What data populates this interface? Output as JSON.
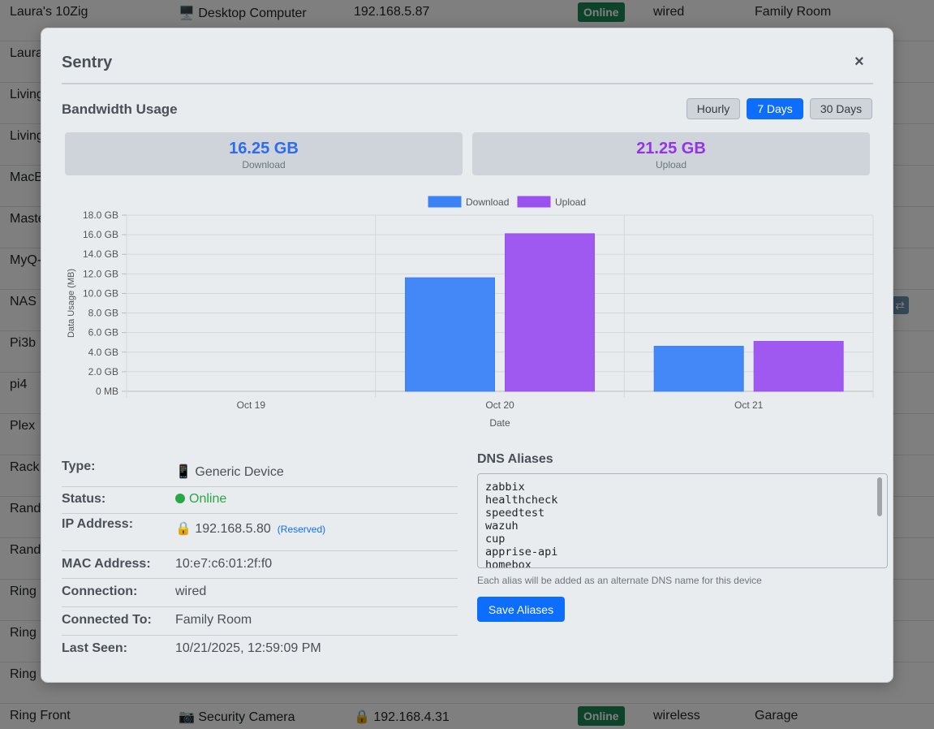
{
  "background_rows": [
    {
      "name": "Laura's 10Zig",
      "type": "🖥️ Desktop Computer",
      "ip": "192.168.5.87",
      "status": "Online",
      "connection": "wired",
      "location": "Family Room"
    },
    {
      "name": "Laura",
      "type": "",
      "ip": "",
      "status": "",
      "connection": "",
      "location": ""
    },
    {
      "name": "Living",
      "type": "",
      "ip": "",
      "status": "",
      "connection": "",
      "location": ""
    },
    {
      "name": "Living",
      "type": "",
      "ip": "",
      "status": "",
      "connection": "",
      "location": ""
    },
    {
      "name": "MacB",
      "type": "",
      "ip": "",
      "status": "",
      "connection": "",
      "location": ""
    },
    {
      "name": "Maste",
      "type": "",
      "ip": "",
      "status": "",
      "connection": "",
      "location": ""
    },
    {
      "name": "MyQ-",
      "type": "",
      "ip": "",
      "status": "",
      "connection": "",
      "location": ""
    },
    {
      "name": "NAS",
      "type": "",
      "ip": "",
      "status": "",
      "connection": "",
      "location": ""
    },
    {
      "name": "Pi3b",
      "type": "",
      "ip": "",
      "status": "",
      "connection": "",
      "location": ""
    },
    {
      "name": "pi4",
      "type": "",
      "ip": "",
      "status": "",
      "connection": "",
      "location": ""
    },
    {
      "name": "Plex",
      "type": "",
      "ip": "",
      "status": "",
      "connection": "",
      "location": ""
    },
    {
      "name": "Rack",
      "type": "",
      "ip": "",
      "status": "",
      "connection": "",
      "location": ""
    },
    {
      "name": "Rand",
      "type": "",
      "ip": "",
      "status": "",
      "connection": "",
      "location": ""
    },
    {
      "name": "Rand",
      "type": "",
      "ip": "",
      "status": "",
      "connection": "",
      "location": ""
    },
    {
      "name": "Ring",
      "type": "",
      "ip": "",
      "status": "",
      "connection": "",
      "location": ""
    },
    {
      "name": "Ring",
      "type": "",
      "ip": "",
      "status": "",
      "connection": "",
      "location": ""
    },
    {
      "name": "Ring",
      "type": "",
      "ip": "",
      "status": "",
      "connection": "",
      "location": ""
    },
    {
      "name": "Ring Front",
      "type": "📷 Security Camera",
      "ip": "🔒 192.168.4.31",
      "status": "Online",
      "connection": "wireless",
      "location": "Garage"
    }
  ],
  "modal": {
    "title": "Sentry",
    "close": "×",
    "section_title": "Bandwidth Usage",
    "ranges": [
      {
        "label": "Hourly",
        "active": false
      },
      {
        "label": "7 Days",
        "active": true
      },
      {
        "label": "30 Days",
        "active": false
      }
    ],
    "download": {
      "value": "16.25 GB",
      "label": "Download",
      "color": "#2f6bf0"
    },
    "upload": {
      "value": "21.25 GB",
      "label": "Upload",
      "color": "#9333ea"
    }
  },
  "chart_data": {
    "type": "bar",
    "categories": [
      "Oct 19",
      "Oct 20",
      "Oct 21"
    ],
    "series": [
      {
        "name": "Download",
        "values": [
          0,
          11.6,
          4.6
        ],
        "color": "#3b82f6"
      },
      {
        "name": "Upload",
        "values": [
          0,
          16.1,
          5.1
        ],
        "color": "#9b51f0"
      }
    ],
    "ylim": [
      0,
      18
    ],
    "yticks": [
      "0 MB",
      "2.0 GB",
      "4.0 GB",
      "6.0 GB",
      "8.0 GB",
      "10.0 GB",
      "12.0 GB",
      "14.0 GB",
      "16.0 GB",
      "18.0 GB"
    ],
    "xlabel": "Date",
    "ylabel": "Data Usage (MB)",
    "legend": "top-center",
    "grid": true
  },
  "info": [
    {
      "label": "Type:",
      "value": "📱 Generic Device"
    },
    {
      "label": "Status:",
      "value": "Online"
    },
    {
      "label": "IP Address:",
      "value": "🔒 192.168.5.80",
      "extra": "(Reserved)"
    },
    {
      "label": "MAC Address:",
      "value": "10:e7:c6:01:2f:f0"
    },
    {
      "label": "Connection:",
      "value": "wired"
    },
    {
      "label": "Connected To:",
      "value": "Family Room"
    },
    {
      "label": "Last Seen:",
      "value": "10/21/2025, 12:59:09 PM"
    }
  ],
  "dns": {
    "title": "DNS Aliases",
    "aliases": "zabbix\nhealthcheck\nspeedtest\nwazuh\ncup\napprise-api\nhomebox",
    "hint": "Each alias will be added as an alternate DNS name for this device",
    "save_label": "Save Aliases"
  }
}
